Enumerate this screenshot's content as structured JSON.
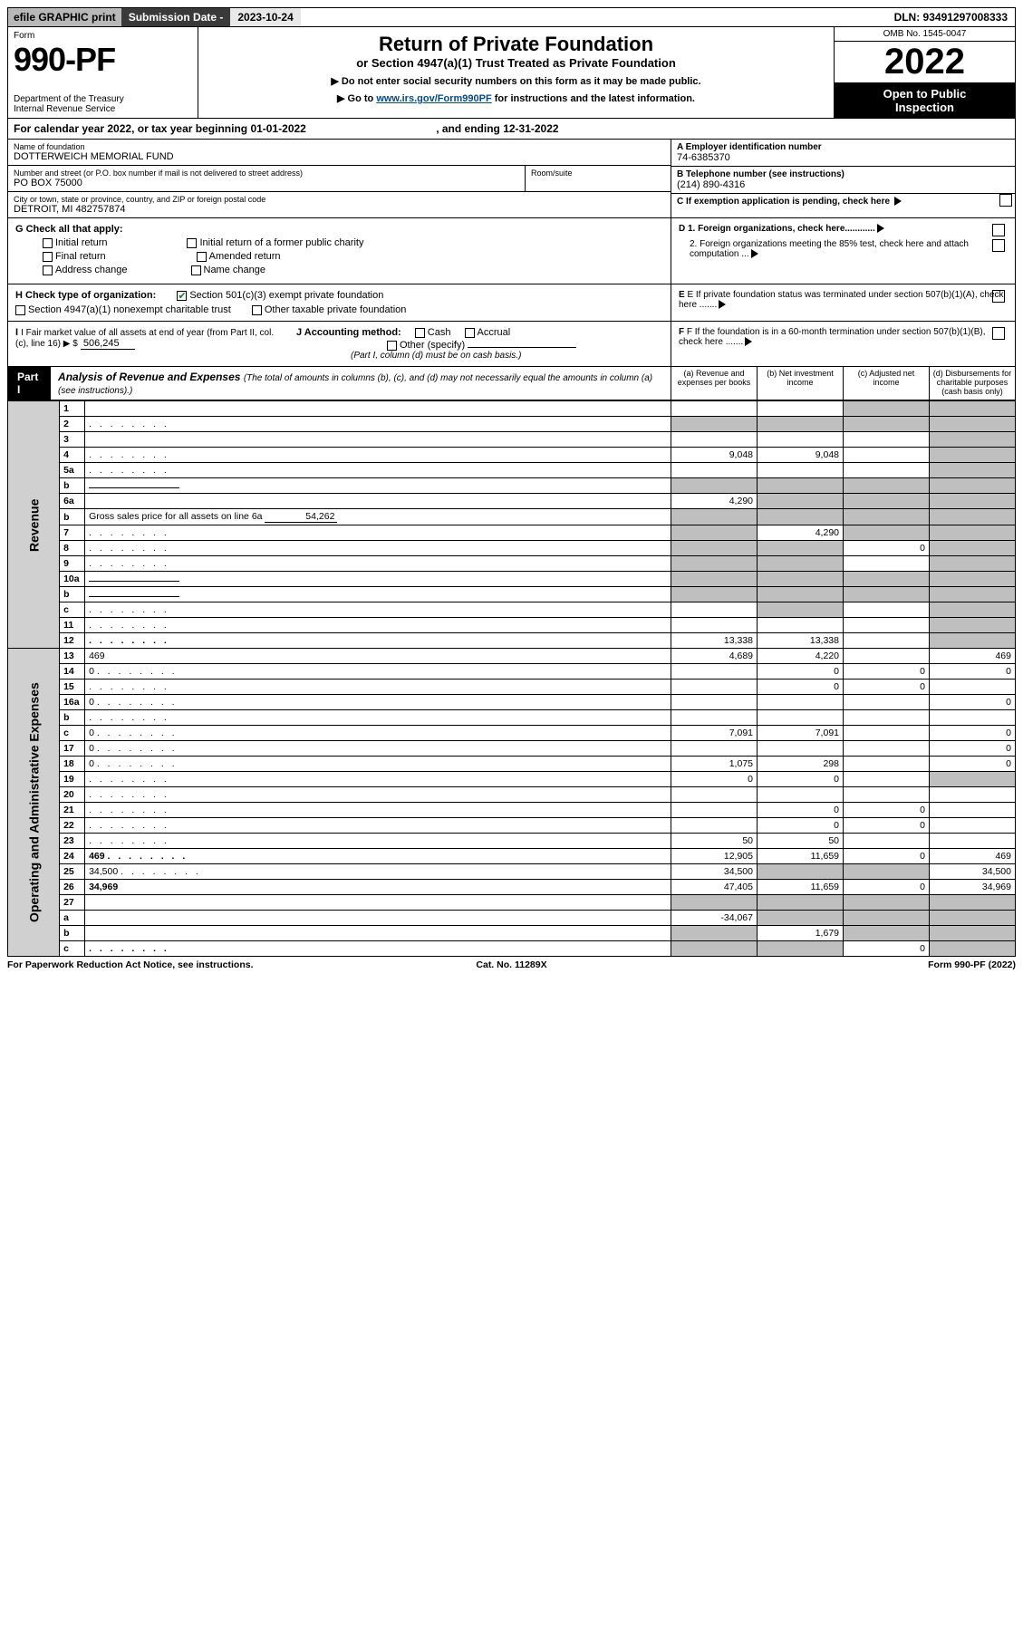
{
  "topbar": {
    "efile": "efile GRAPHIC print",
    "subdate_lbl": "Submission Date - ",
    "subdate_val": "2023-10-24",
    "dln": "DLN: 93491297008333"
  },
  "header": {
    "form_word": "Form",
    "form_num": "990-PF",
    "dept": "Department of the Treasury\nInternal Revenue Service",
    "title": "Return of Private Foundation",
    "subtitle": "or Section 4947(a)(1) Trust Treated as Private Foundation",
    "instr1": "▶ Do not enter social security numbers on this form as it may be made public.",
    "instr2_pre": "▶ Go to ",
    "instr2_link": "www.irs.gov/Form990PF",
    "instr2_post": " for instructions and the latest information.",
    "omb": "OMB No. 1545-0047",
    "year": "2022",
    "open": "Open to Public\nInspection"
  },
  "cal_year": {
    "pre": "For calendar year 2022, or tax year beginning ",
    "begin": "01-01-2022",
    "mid": ", and ending ",
    "end": "12-31-2022"
  },
  "entity": {
    "name_lbl": "Name of foundation",
    "name": "DOTTERWEICH MEMORIAL FUND",
    "addr_lbl": "Number and street (or P.O. box number if mail is not delivered to street address)",
    "addr": "PO BOX 75000",
    "room_lbl": "Room/suite",
    "room": "",
    "city_lbl": "City or town, state or province, country, and ZIP or foreign postal code",
    "city": "DETROIT, MI  482757874",
    "a_lbl": "A Employer identification number",
    "ein": "74-6385370",
    "b_lbl": "B Telephone number (see instructions)",
    "phone": "(214) 890-4316",
    "c_lbl": "C If exemption application is pending, check here"
  },
  "sectionG": {
    "lbl": "G Check all that apply:",
    "opts": [
      "Initial return",
      "Final return",
      "Address change",
      "Initial return of a former public charity",
      "Amended return",
      "Name change"
    ]
  },
  "sectionH": {
    "lbl": "H Check type of organization:",
    "opt1": "Section 501(c)(3) exempt private foundation",
    "opt2": "Section 4947(a)(1) nonexempt charitable trust",
    "opt3": "Other taxable private foundation"
  },
  "sectionI": {
    "lbl": "I Fair market value of all assets at end of year (from Part II, col. (c), line 16) ▶ $",
    "val": "506,245"
  },
  "sectionJ": {
    "lbl": "J Accounting method:",
    "o1": "Cash",
    "o2": "Accrual",
    "o3": "Other (specify)",
    "note": "(Part I, column (d) must be on cash basis.)"
  },
  "rightD": {
    "d1": "D 1. Foreign organizations, check here............",
    "d2": "2. Foreign organizations meeting the 85% test, check here and attach computation ...",
    "e": "E If private foundation status was terminated under section 507(b)(1)(A), check here .......",
    "f": "F If the foundation is in a 60-month termination under section 507(b)(1)(B), check here ......."
  },
  "part1": {
    "tag": "Part I",
    "title": "Analysis of Revenue and Expenses",
    "note": "(The total of amounts in columns (b), (c), and (d) may not necessarily equal the amounts in column (a) (see instructions).)",
    "cols": {
      "a": "(a) Revenue and expenses per books",
      "b": "(b) Net investment income",
      "c": "(c) Adjusted net income",
      "d": "(d) Disbursements for charitable purposes (cash basis only)"
    }
  },
  "vlabels": {
    "rev": "Revenue",
    "exp": "Operating and Administrative Expenses"
  },
  "rows_rev": [
    {
      "n": "1",
      "d": "",
      "a": "",
      "b": "",
      "c": "",
      "shade_c": true,
      "shade_d": true
    },
    {
      "n": "2",
      "d": "",
      "dots": true,
      "a": "",
      "b": "",
      "c": "",
      "shade_all": true
    },
    {
      "n": "3",
      "d": "",
      "a": "",
      "b": "",
      "c": "",
      "shade_d": true
    },
    {
      "n": "4",
      "d": "",
      "dots": true,
      "a": "9,048",
      "b": "9,048",
      "c": "",
      "shade_d": true
    },
    {
      "n": "5a",
      "d": "",
      "dots": true,
      "a": "",
      "b": "",
      "c": "",
      "shade_d": true
    },
    {
      "n": "b",
      "d": "",
      "fill": true,
      "a": "",
      "b": "",
      "c": "",
      "shade_all": true
    },
    {
      "n": "6a",
      "d": "",
      "a": "4,290",
      "b": "",
      "c": "",
      "shade_b": true,
      "shade_c": true,
      "shade_d": true
    },
    {
      "n": "b",
      "d_pre": "Gross sales price for all assets on line 6a",
      "fill_val": "54,262",
      "a": "",
      "b": "",
      "c": "",
      "d": "",
      "shade_all": true
    },
    {
      "n": "7",
      "d": "",
      "dots": true,
      "a": "",
      "b": "4,290",
      "c": "",
      "shade_a": true,
      "shade_c": true,
      "shade_d": true
    },
    {
      "n": "8",
      "d": "",
      "dots": true,
      "a": "",
      "b": "",
      "c": "0",
      "shade_a": true,
      "shade_b": true,
      "shade_d": true
    },
    {
      "n": "9",
      "d": "",
      "dots": true,
      "a": "",
      "b": "",
      "c": "",
      "shade_a": true,
      "shade_b": true,
      "shade_d": true
    },
    {
      "n": "10a",
      "d": "",
      "fill": true,
      "a": "",
      "b": "",
      "c": "",
      "shade_all": true
    },
    {
      "n": "b",
      "d": "",
      "dots": true,
      "fill": true,
      "a": "",
      "b": "",
      "c": "",
      "shade_all": true
    },
    {
      "n": "c",
      "d": "",
      "dots": true,
      "a": "",
      "b": "",
      "c": "",
      "shade_b": true,
      "shade_d": true
    },
    {
      "n": "11",
      "d": "",
      "dots": true,
      "a": "",
      "b": "",
      "c": "",
      "shade_d": true
    },
    {
      "n": "12",
      "d": "",
      "dots": true,
      "bold": true,
      "a": "13,338",
      "b": "13,338",
      "c": "",
      "shade_d": true
    }
  ],
  "rows_exp": [
    {
      "n": "13",
      "d": "469",
      "a": "4,689",
      "b": "4,220",
      "c": ""
    },
    {
      "n": "14",
      "d": "0",
      "dots": true,
      "a": "",
      "b": "0",
      "c": "0"
    },
    {
      "n": "15",
      "d": "",
      "dots": true,
      "a": "",
      "b": "0",
      "c": "0"
    },
    {
      "n": "16a",
      "d": "0",
      "dots": true,
      "a": "",
      "b": "",
      "c": ""
    },
    {
      "n": "b",
      "d": "",
      "dots": true,
      "a": "",
      "b": "",
      "c": ""
    },
    {
      "n": "c",
      "d": "0",
      "dots": true,
      "a": "7,091",
      "b": "7,091",
      "c": ""
    },
    {
      "n": "17",
      "d": "0",
      "dots": true,
      "a": "",
      "b": "",
      "c": ""
    },
    {
      "n": "18",
      "d": "0",
      "dots": true,
      "a": "1,075",
      "b": "298",
      "c": ""
    },
    {
      "n": "19",
      "d": "",
      "dots": true,
      "a": "0",
      "b": "0",
      "c": "",
      "shade_d": true
    },
    {
      "n": "20",
      "d": "",
      "dots": true,
      "a": "",
      "b": "",
      "c": ""
    },
    {
      "n": "21",
      "d": "",
      "dots": true,
      "a": "",
      "b": "0",
      "c": "0"
    },
    {
      "n": "22",
      "d": "",
      "dots": true,
      "a": "",
      "b": "0",
      "c": "0"
    },
    {
      "n": "23",
      "d": "",
      "dots": true,
      "a": "50",
      "b": "50",
      "c": ""
    },
    {
      "n": "24",
      "d": "469",
      "dots": true,
      "bold": true,
      "a": "12,905",
      "b": "11,659",
      "c": "0"
    },
    {
      "n": "25",
      "d": "34,500",
      "dots": true,
      "a": "34,500",
      "b": "",
      "c": "",
      "shade_b": true,
      "shade_c": true
    },
    {
      "n": "26",
      "d": "34,969",
      "bold": true,
      "a": "47,405",
      "b": "11,659",
      "c": "0"
    },
    {
      "n": "27",
      "d": "",
      "a": "",
      "b": "",
      "c": "",
      "shade_all": true
    },
    {
      "n": "a",
      "d": "",
      "bold": true,
      "a": "-34,067",
      "b": "",
      "c": "",
      "shade_b": true,
      "shade_c": true,
      "shade_d": true
    },
    {
      "n": "b",
      "d": "",
      "bold": true,
      "a": "",
      "b": "1,679",
      "c": "",
      "shade_a": true,
      "shade_c": true,
      "shade_d": true
    },
    {
      "n": "c",
      "d": "",
      "dots": true,
      "bold": true,
      "a": "",
      "b": "",
      "c": "0",
      "shade_a": true,
      "shade_b": true,
      "shade_d": true
    }
  ],
  "footer": {
    "l": "For Paperwork Reduction Act Notice, see instructions.",
    "c": "Cat. No. 11289X",
    "r": "Form 990-PF (2022)"
  }
}
